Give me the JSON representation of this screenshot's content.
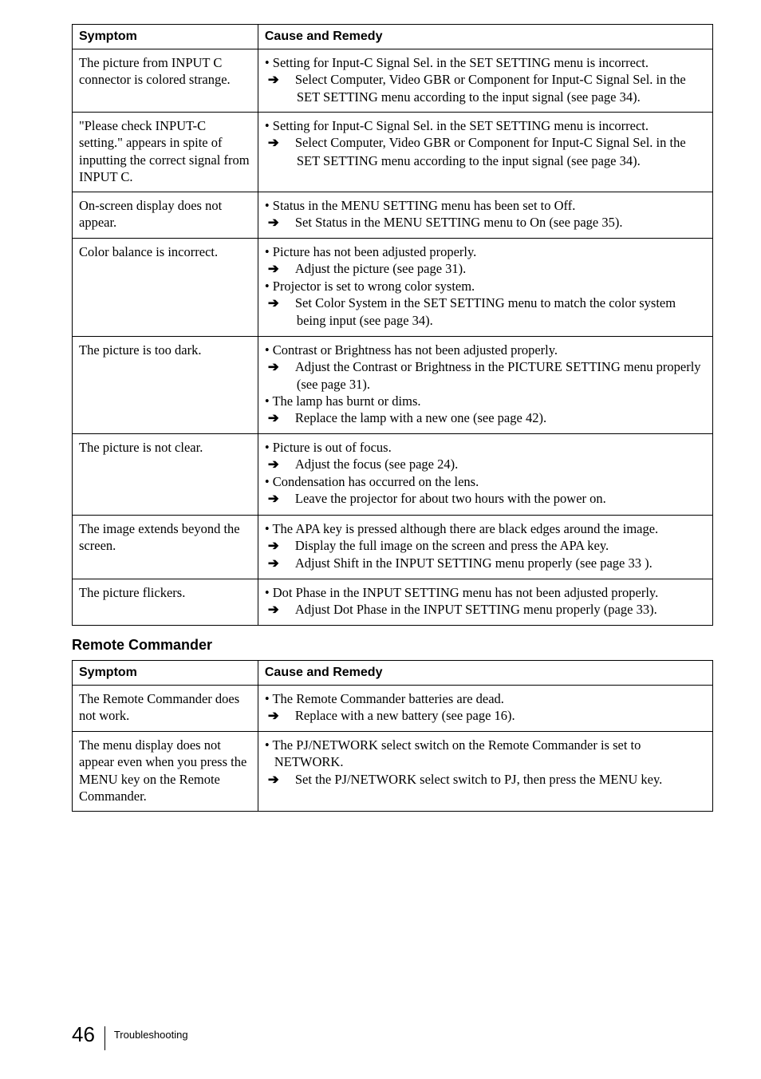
{
  "table1": {
    "headers": {
      "symptom": "Symptom",
      "remedy": "Cause and Remedy"
    },
    "rows": [
      {
        "symptom": "The picture from INPUT C connector is colored strange.",
        "causes": [
          {
            "bullet": "• Setting for Input-C Signal Sel. in the SET SETTING menu is incorrect.",
            "arrows": [
              "Select Computer, Video GBR or Component for Input-C Signal Sel. in the SET SETTING menu according to the input signal (see page 34)."
            ]
          }
        ]
      },
      {
        "symptom": "\"Please check INPUT-C setting.\" appears in spite of inputting the correct signal from INPUT C.",
        "causes": [
          {
            "bullet": "• Setting for Input-C Signal Sel. in the SET SETTING menu is incorrect.",
            "arrows": [
              "Select Computer, Video GBR or Component for Input-C Signal Sel. in the SET SETTING menu according to the input signal (see page 34)."
            ]
          }
        ]
      },
      {
        "symptom": "On-screen display does not appear.",
        "causes": [
          {
            "bullet": "• Status in the MENU SETTING menu has been set to Off.",
            "arrows": [
              "Set Status in the MENU SETTING menu to On (see page 35)."
            ]
          }
        ]
      },
      {
        "symptom": "Color balance is incorrect.",
        "causes": [
          {
            "bullet": "• Picture has not been adjusted properly.",
            "arrows": [
              "Adjust the picture (see page 31)."
            ]
          },
          {
            "bullet": "• Projector is set to wrong color system.",
            "arrows": [
              "Set Color System in the SET SETTING menu to match the color system being input (see page 34)."
            ]
          }
        ]
      },
      {
        "symptom": "The picture is too dark.",
        "causes": [
          {
            "bullet": "• Contrast or Brightness has not been adjusted properly.",
            "arrows": [
              "Adjust the Contrast or Brightness in the PICTURE SETTING menu properly (see page 31)."
            ]
          },
          {
            "bullet": "• The lamp has burnt or dims.",
            "arrows": [
              "Replace the lamp with a new one (see page 42)."
            ]
          }
        ]
      },
      {
        "symptom": "The picture is not clear.",
        "causes": [
          {
            "bullet": "• Picture is out of focus.",
            "arrows": [
              "Adjust the focus (see page 24)."
            ]
          },
          {
            "bullet": "• Condensation has occurred on the lens.",
            "arrows": [
              "Leave the projector for about two hours with the power on."
            ]
          }
        ]
      },
      {
        "symptom": "The image extends beyond the screen.",
        "causes": [
          {
            "bullet": "• The APA key is pressed although there are black edges around the image.",
            "arrows": [
              "Display the full image on the screen and press the APA key.",
              "Adjust Shift in the INPUT SETTING menu properly (see page 33 )."
            ]
          }
        ]
      },
      {
        "symptom": "The picture flickers.",
        "causes": [
          {
            "bullet": "• Dot Phase in the INPUT SETTING menu has not been adjusted properly.",
            "arrows": [
              "Adjust Dot Phase in the INPUT SETTING menu properly (page 33)."
            ]
          }
        ]
      }
    ]
  },
  "section2_title": "Remote Commander",
  "table2": {
    "headers": {
      "symptom": "Symptom",
      "remedy": "Cause and Remedy"
    },
    "rows": [
      {
        "symptom": "The Remote Commander does not work.",
        "causes": [
          {
            "bullet": "• The Remote Commander batteries are dead.",
            "arrows": [
              "Replace with a new battery (see page 16)."
            ]
          }
        ]
      },
      {
        "symptom": "The menu display does not appear even when you press the MENU key on the Remote Commander.",
        "causes": [
          {
            "bullet": "• The PJ/NETWORK select switch on the Remote Commander is set to NETWORK.",
            "arrows": [
              "Set the PJ/NETWORK select switch to PJ, then press the MENU key."
            ]
          }
        ]
      }
    ]
  },
  "footer": {
    "page": "46",
    "label": "Troubleshooting"
  },
  "style": {
    "arrow_glyph": "➔",
    "colors": {
      "text": "#000000",
      "background": "#ffffff",
      "border": "#000000"
    }
  }
}
